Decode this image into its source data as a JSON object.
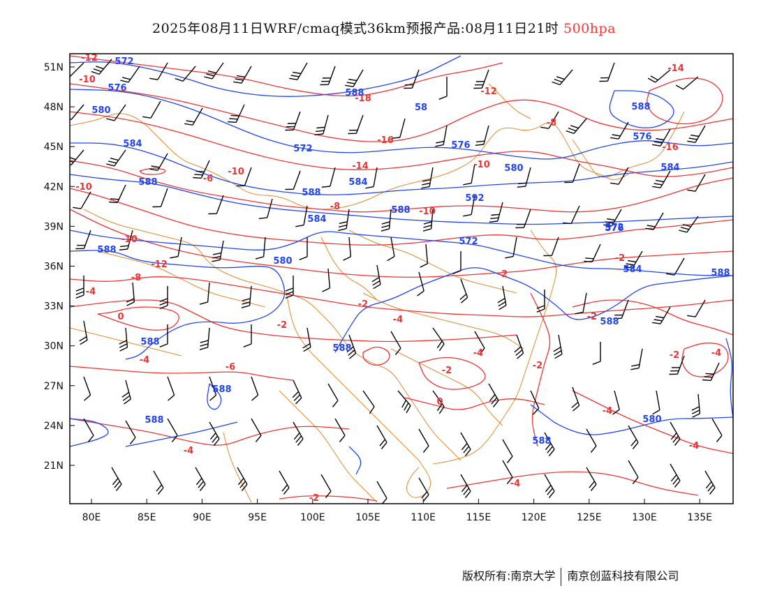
{
  "title": {
    "main": "2025年08月11日WRF/cmaq模式36km预报产品:08月11日21时",
    "level": "500hpa"
  },
  "colors": {
    "height_contour": "#2244ee",
    "temperature_contour": "#ee3333",
    "boundary": "#e08a30",
    "wind_barb": "#000000",
    "level_text": "#ff3333"
  },
  "map": {
    "lon_ticks": [
      "80E",
      "85E",
      "90E",
      "95E",
      "100E",
      "105E",
      "110E",
      "115E",
      "120E",
      "125E",
      "130E",
      "135E"
    ],
    "lat_ticks": [
      "51N",
      "48N",
      "45N",
      "42N",
      "39N",
      "36N",
      "33N",
      "30N",
      "27N",
      "24N",
      "21N"
    ],
    "temperature_labels": [
      "-12",
      "-10",
      "-18",
      "-16",
      "-14",
      "-12",
      "-10",
      "-8",
      "-10",
      "-6",
      "-10",
      "-8",
      "-10",
      "-14",
      "-16",
      "-10",
      "-12",
      "-8",
      "-4",
      "-2",
      "0",
      "-4",
      "-6",
      "-4",
      "-2",
      "-2",
      "-4",
      "-2",
      "0",
      "-2",
      "-2",
      "-2",
      "-2",
      "-4",
      "-4",
      "-4",
      "-4",
      "-2",
      "-4"
    ],
    "height_labels": [
      "572",
      "576",
      "580",
      "584",
      "588",
      "588",
      "58",
      "572",
      "576",
      "580",
      "584",
      "588",
      "592",
      "584",
      "588",
      "572",
      "576",
      "580",
      "584",
      "588",
      "588",
      "588",
      "588",
      "588",
      "588",
      "588",
      "580",
      "584",
      "588",
      "576",
      "572",
      "588"
    ],
    "legend_icons": [
      "wind-barb-icon"
    ]
  },
  "copyright": {
    "owner": "版权所有:南京大学",
    "company": "南京创蓝科技有限公司"
  }
}
